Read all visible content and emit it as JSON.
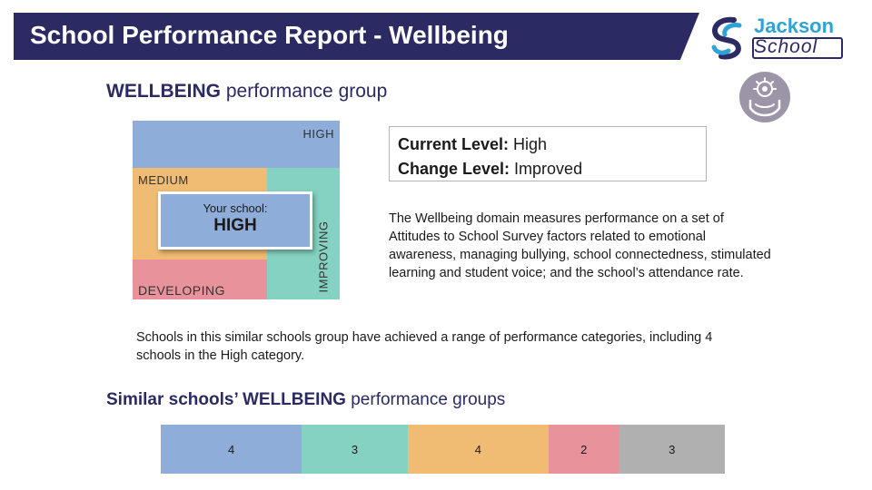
{
  "header": {
    "title": "School Performance Report - Wellbeing"
  },
  "logo": {
    "word1": "Jackson",
    "word2": "School"
  },
  "icons": {
    "section_icon": "hands-gear-icon"
  },
  "colors": {
    "navy": "#2b2a63",
    "high": "#8eadd8",
    "medium": "#f0bb72",
    "improving": "#85d2c2",
    "developing": "#e8939c",
    "grey": "#b0b0b0"
  },
  "section": {
    "heading_bold": "WELLBEING",
    "heading_rest": "performance group"
  },
  "matrix": {
    "high": "HIGH",
    "medium": "MEDIUM",
    "improving": "IMPROVING",
    "developing": "DEVELOPING",
    "your_school_label": "Your school:",
    "your_school_value": "HIGH"
  },
  "levels": {
    "current_label": "Current Level:",
    "current_value": "High",
    "change_label": "Change Level:",
    "change_value": "Improved"
  },
  "description": "The Wellbeing domain measures performance on a set of Attitudes to School Survey factors related to emotional awareness, managing bullying, school connectedness, stimulated learning and student voice; and the school’s attendance rate.",
  "note": "Schools in this similar schools group have achieved a range of performance categories, including 4 schools in the High category.",
  "similar": {
    "heading_bold": "Similar schools’ WELLBEING",
    "heading_rest": "performance groups",
    "segments": [
      {
        "value": "4",
        "color": "#8eadd8"
      },
      {
        "value": "3",
        "color": "#85d2c2"
      },
      {
        "value": "4",
        "color": "#f0bb72"
      },
      {
        "value": "2",
        "color": "#e8939c"
      },
      {
        "value": "3",
        "color": "#b0b0b0"
      }
    ]
  }
}
